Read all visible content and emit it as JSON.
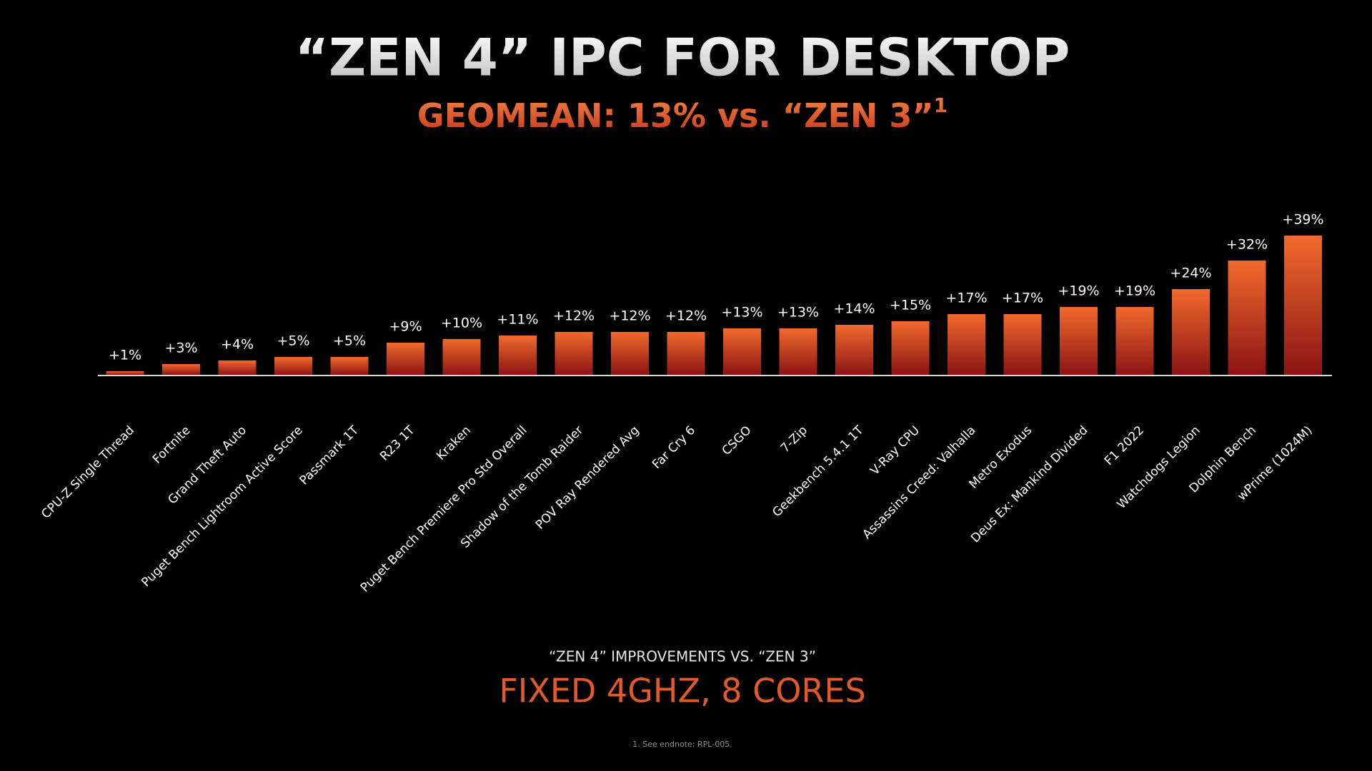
{
  "chart_data": {
    "type": "bar",
    "title": "“ZEN 4” IPC FOR DESKTOP",
    "subtitle": "GEOMEAN: 13% vs. “ZEN 3”",
    "subtitle_superscript": "1",
    "categories": [
      "CPU-Z Single Thread",
      "Fortnite",
      "Grand Theft Auto",
      "Puget Bench Lightroom Active Score",
      "Passmark 1T",
      "R23 1T",
      "Kraken",
      "Puget Bench Premiere Pro Std Overall",
      "Shadow of the Tomb Raider",
      "POV Ray Rendered Avg",
      "Far Cry 6",
      "CSGO",
      "7-Zip",
      "Geekbench 5.4.1 1T",
      "V-Ray CPU",
      "Assassins Creed: Valhalla",
      "Metro Exodus",
      "Deus Ex: Mankind Divided",
      "F1 2022",
      "Watchdogs Legion",
      "Dolphin Bench",
      "wPrime (1024M)"
    ],
    "values": [
      1,
      3,
      4,
      5,
      5,
      9,
      10,
      11,
      12,
      12,
      12,
      13,
      13,
      14,
      15,
      17,
      17,
      19,
      19,
      24,
      32,
      39
    ],
    "value_labels": [
      "+1%",
      "+3%",
      "+4%",
      "+5%",
      "+5%",
      "+9%",
      "+10%",
      "+11%",
      "+12%",
      "+12%",
      "+12%",
      "+13%",
      "+13%",
      "+14%",
      "+15%",
      "+17%",
      "+17%",
      "+19%",
      "+19%",
      "+24%",
      "+32%",
      "+39%"
    ],
    "color": "#f26a2c",
    "color_end": "#8a1414",
    "caption": "“ZEN 4” IMPROVEMENTS VS. “ZEN 3”",
    "highlight": "FIXED 4GHZ, 8 CORES",
    "footnote": "1. See endnote: RPL-005."
  }
}
